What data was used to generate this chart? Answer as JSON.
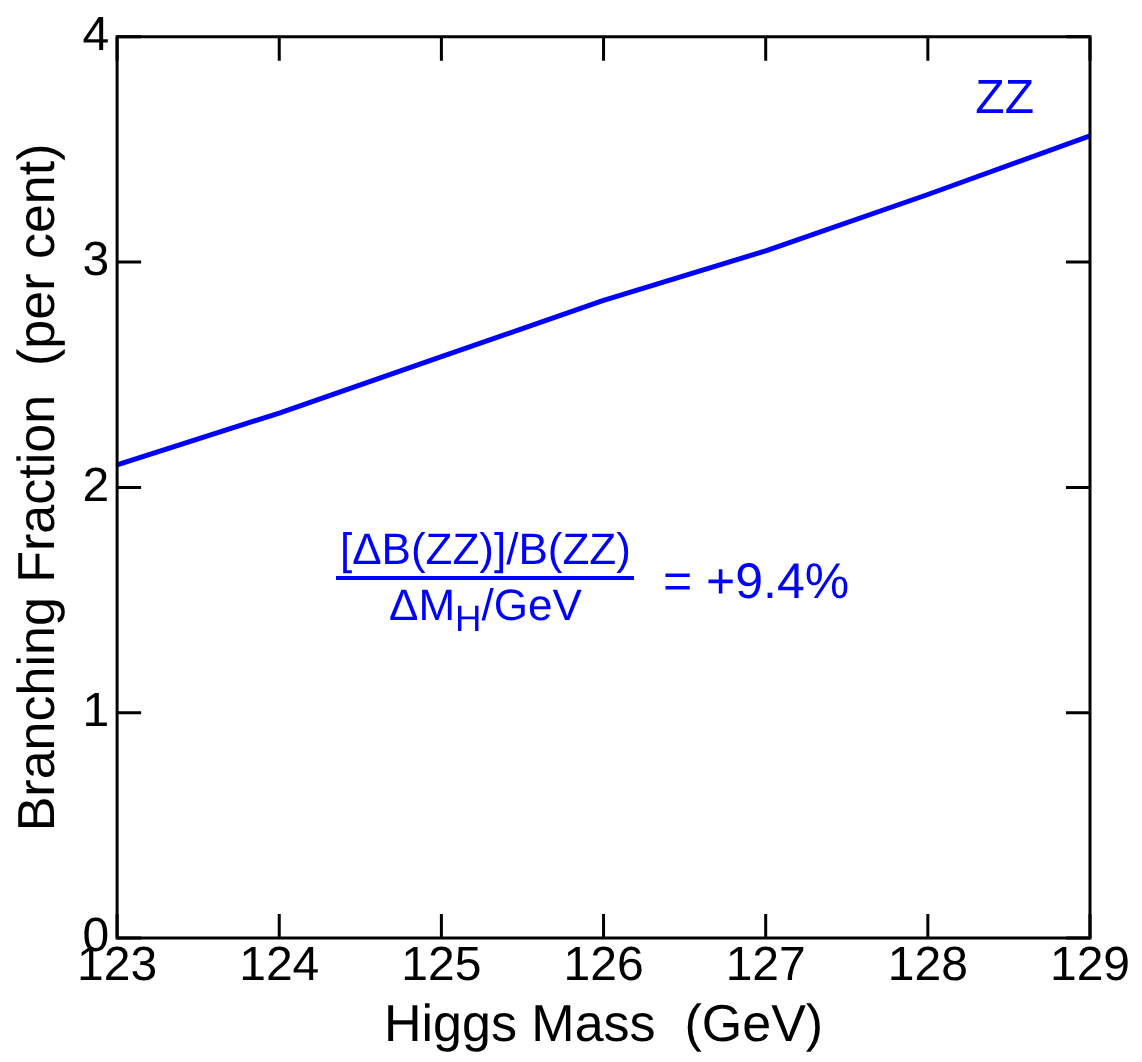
{
  "chart_data": {
    "type": "line",
    "xlabel": "Higgs Mass  (GeV)",
    "ylabel": "Branching Fraction  (per cent)",
    "x": [
      123,
      124,
      125,
      126,
      127,
      128,
      129
    ],
    "series": [
      {
        "name": "ZZ",
        "color": "#0000ff",
        "values": [
          2.1,
          2.33,
          2.58,
          2.83,
          3.05,
          3.3,
          3.56
        ]
      }
    ],
    "xlim": [
      123,
      129
    ],
    "xticks": [
      123,
      124,
      125,
      126,
      127,
      128,
      129
    ],
    "ylim": [
      0,
      4
    ],
    "yticks": [
      0,
      1,
      2,
      3,
      4
    ],
    "grid": false,
    "legend": false,
    "marker": "none",
    "line_style": "solid",
    "annotations": [
      "[ΔB(ZZ)]/B(ZZ)",
      "ΔM$_{H}$/GeV",
      "= +9.4%"
    ]
  }
}
